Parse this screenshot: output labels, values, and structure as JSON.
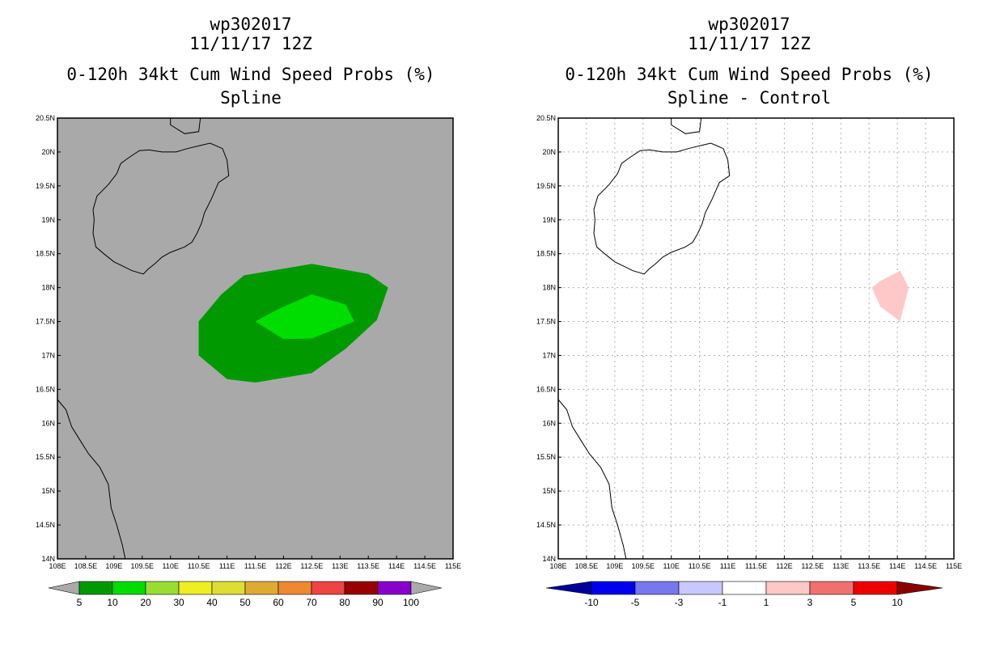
{
  "chart_data": [
    {
      "type": "heatmap",
      "panel": "left",
      "title_lines": [
        "wp302017",
        "11/11/17 12Z",
        "0-120h 34kt Cum Wind Speed Probs (%)",
        "Spline"
      ],
      "x_range": [
        108,
        115
      ],
      "y_range": [
        14,
        20.5
      ],
      "x_tick_labels": [
        "108E",
        "108.5E",
        "109E",
        "109.5E",
        "110E",
        "110.5E",
        "111E",
        "111.5E",
        "112E",
        "112.5E",
        "113E",
        "113.5E",
        "114E",
        "114.5E",
        "115E"
      ],
      "y_tick_labels": [
        "14N",
        "14.5N",
        "15N",
        "15.5N",
        "16N",
        "16.5N",
        "17N",
        "17.5N",
        "18N",
        "18.5N",
        "19N",
        "19.5N",
        "20N",
        "20.5N"
      ],
      "grid": false,
      "background_color": "#a9a9a9",
      "regions": [
        {
          "level": "5-10",
          "color": "#009900",
          "polygon": [
            [
              110.5,
              17.5
            ],
            [
              110.9,
              17.9
            ],
            [
              111.3,
              18.18
            ],
            [
              112.5,
              18.35
            ],
            [
              113.5,
              18.2
            ],
            [
              113.85,
              18.0
            ],
            [
              113.65,
              17.52
            ],
            [
              113.1,
              17.1
            ],
            [
              112.5,
              16.74
            ],
            [
              111.5,
              16.6
            ],
            [
              111.0,
              16.65
            ],
            [
              110.5,
              17.0
            ]
          ]
        },
        {
          "level": "10-20",
          "color": "#00dd00",
          "polygon": [
            [
              111.5,
              17.5
            ],
            [
              111.9,
              17.68
            ],
            [
              112.5,
              17.9
            ],
            [
              113.1,
              17.75
            ],
            [
              113.25,
              17.5
            ],
            [
              112.5,
              17.25
            ],
            [
              112.0,
              17.24
            ]
          ]
        }
      ],
      "colorbar": {
        "labels": [
          "5",
          "10",
          "20",
          "30",
          "40",
          "50",
          "60",
          "70",
          "80",
          "90",
          "100"
        ],
        "colors": [
          "#009900",
          "#00dd00",
          "#99dd33",
          "#eeee22",
          "#dddd33",
          "#ddaa33",
          "#ee8833",
          "#ee4444",
          "#990000",
          "#8800cc"
        ],
        "end_color": "#aaaaaa"
      }
    },
    {
      "type": "heatmap",
      "panel": "right",
      "title_lines": [
        "wp302017",
        "11/11/17 12Z",
        "0-120h 34kt Cum Wind Speed Probs (%)",
        "Spline - Control"
      ],
      "x_range": [
        108,
        115
      ],
      "y_range": [
        14,
        20.5
      ],
      "x_tick_labels": [
        "108E",
        "108.5E",
        "109E",
        "109.5E",
        "110E",
        "110.5E",
        "111E",
        "111.5E",
        "112E",
        "112.5E",
        "113E",
        "113.5E",
        "114E",
        "114.5E",
        "115E"
      ],
      "y_tick_labels": [
        "14N",
        "14.5N",
        "15N",
        "15.5N",
        "16N",
        "16.5N",
        "17N",
        "17.5N",
        "18N",
        "18.5N",
        "19N",
        "19.5N",
        "20N",
        "20.5N"
      ],
      "grid": true,
      "background_color": "#ffffff",
      "regions": [
        {
          "level": "1-3",
          "color": "#ffc8c8",
          "polygon": [
            [
              113.55,
              18.0
            ],
            [
              113.7,
              18.1
            ],
            [
              114.05,
              18.25
            ],
            [
              114.2,
              18.0
            ],
            [
              114.05,
              17.5
            ],
            [
              113.7,
              17.72
            ]
          ]
        }
      ],
      "colorbar": {
        "labels": [
          "-10",
          "-5",
          "-3",
          "-1",
          "1",
          "3",
          "5",
          "10"
        ],
        "colors": [
          "#0000ee",
          "#7777ee",
          "#c8c8ff",
          "#ffffff",
          "#ffc8c8",
          "#f07070",
          "#ee0000"
        ],
        "left_end_color": "#000099",
        "right_end_color": "#880000"
      }
    }
  ],
  "coastlines": {
    "hainan": [
      [
        108.63,
        19.15
      ],
      [
        108.7,
        19.35
      ],
      [
        108.9,
        19.52
      ],
      [
        109.05,
        19.68
      ],
      [
        109.12,
        19.83
      ],
      [
        109.25,
        19.91
      ],
      [
        109.45,
        20.02
      ],
      [
        109.62,
        20.03
      ],
      [
        109.85,
        20.0
      ],
      [
        110.1,
        20.0
      ],
      [
        110.3,
        20.05
      ],
      [
        110.55,
        20.1
      ],
      [
        110.7,
        20.13
      ],
      [
        110.92,
        20.05
      ],
      [
        111.0,
        19.88
      ],
      [
        111.03,
        19.65
      ],
      [
        110.85,
        19.55
      ],
      [
        110.72,
        19.3
      ],
      [
        110.6,
        19.1
      ],
      [
        110.55,
        18.95
      ],
      [
        110.47,
        18.8
      ],
      [
        110.38,
        18.67
      ],
      [
        110.25,
        18.6
      ],
      [
        110.0,
        18.52
      ],
      [
        109.85,
        18.45
      ],
      [
        109.72,
        18.35
      ],
      [
        109.6,
        18.27
      ],
      [
        109.52,
        18.2
      ],
      [
        109.32,
        18.25
      ],
      [
        109.15,
        18.32
      ],
      [
        109.0,
        18.38
      ],
      [
        108.82,
        18.5
      ],
      [
        108.68,
        18.6
      ],
      [
        108.63,
        18.8
      ],
      [
        108.65,
        19.0
      ],
      [
        108.63,
        19.15
      ]
    ],
    "mainland_top": [
      [
        110.0,
        20.5
      ],
      [
        110.0,
        20.4
      ],
      [
        110.25,
        20.27
      ],
      [
        110.5,
        20.3
      ],
      [
        110.53,
        20.5
      ]
    ],
    "vietnam": [
      [
        108.0,
        16.35
      ],
      [
        108.15,
        16.2
      ],
      [
        108.25,
        15.95
      ],
      [
        108.4,
        15.75
      ],
      [
        108.55,
        15.55
      ],
      [
        108.75,
        15.35
      ],
      [
        108.9,
        15.1
      ],
      [
        108.95,
        14.75
      ],
      [
        109.05,
        14.5
      ],
      [
        109.15,
        14.2
      ],
      [
        109.2,
        14.0
      ]
    ]
  }
}
